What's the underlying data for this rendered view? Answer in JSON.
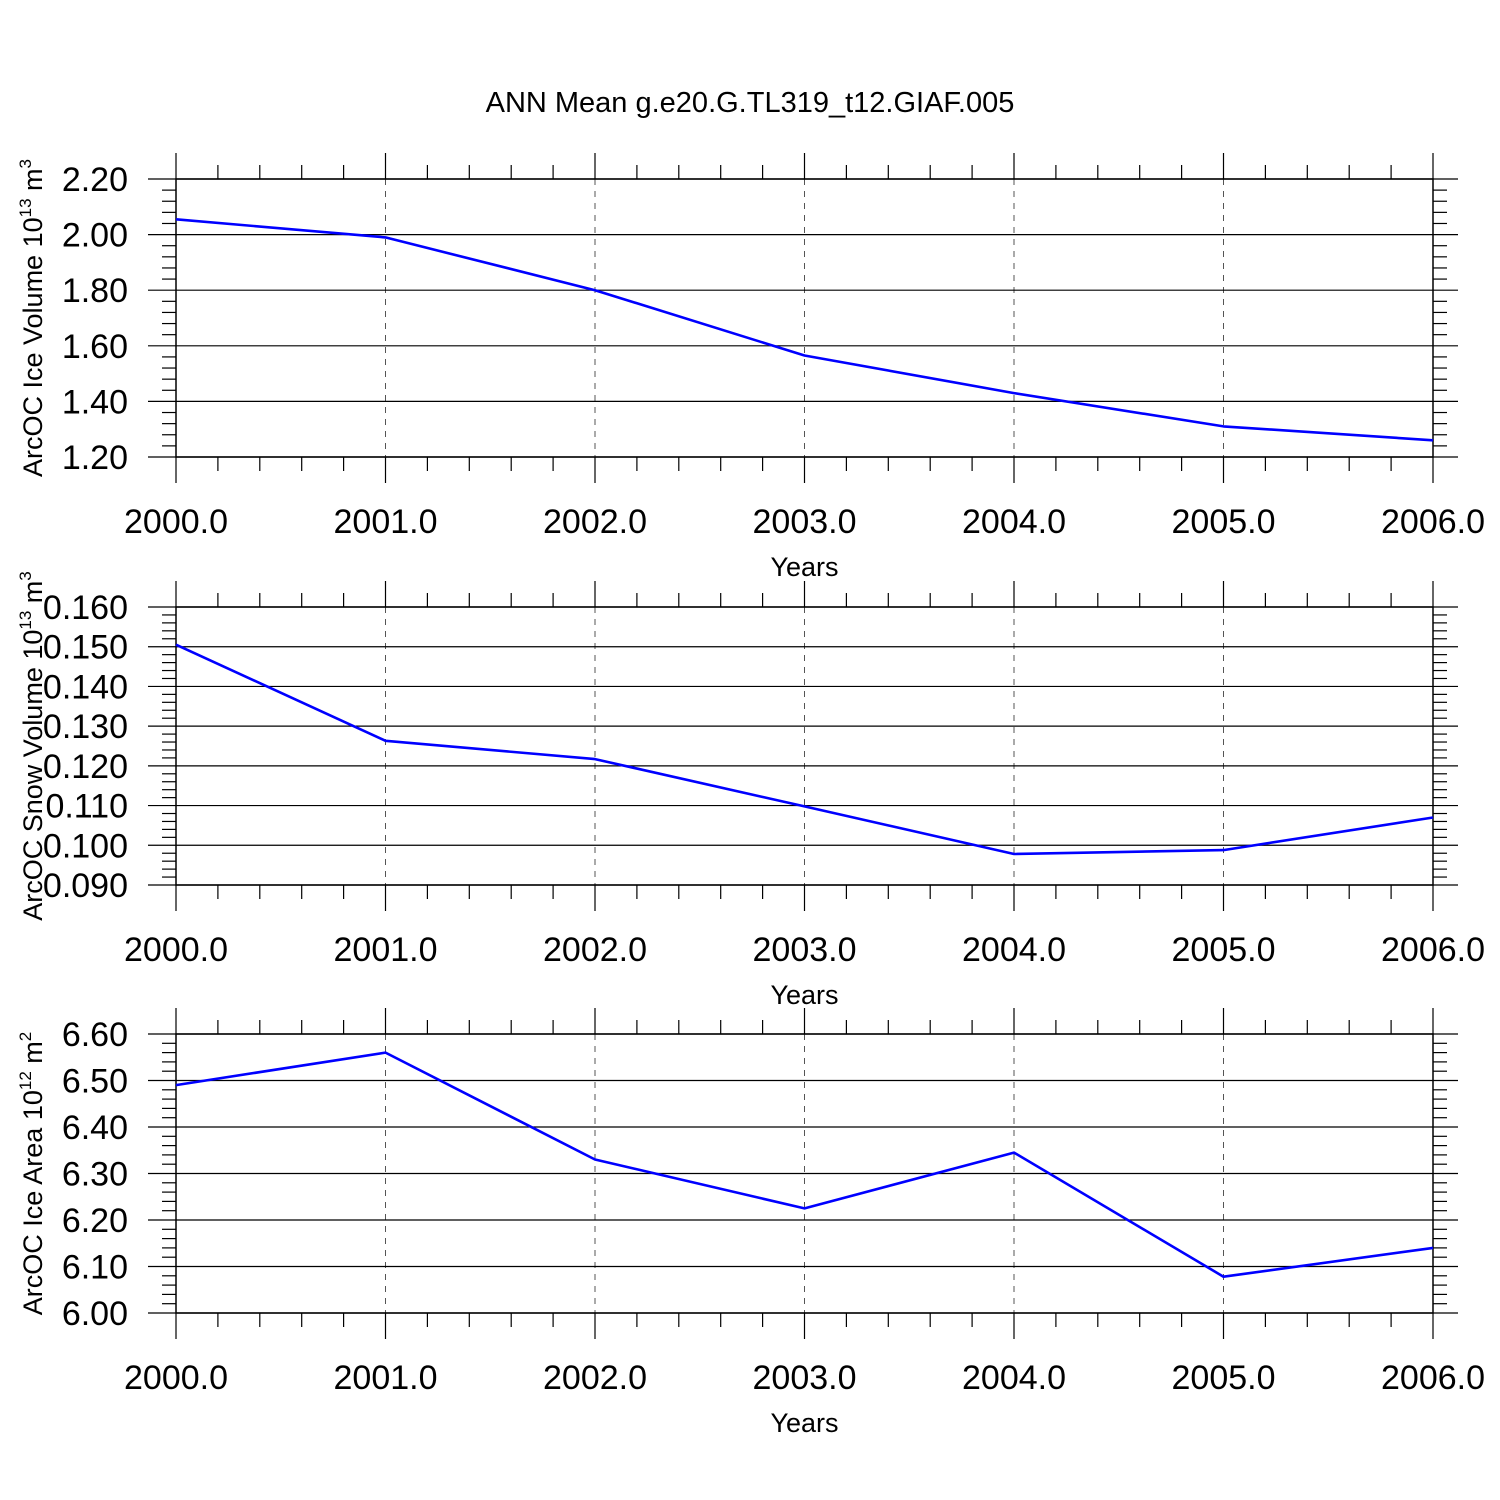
{
  "title": "ANN Mean g.e20.G.TL319_t12.GIAF.005",
  "line_color": "#0000ff",
  "chart_data": [
    {
      "type": "line",
      "xlabel": "Years",
      "ylabel": "ArcOC Ice Volume 10",
      "ylabel_exp": "13",
      "ylabel_unit": " m",
      "ylabel_unit_exp": "3",
      "x": [
        2000,
        2001,
        2002,
        2003,
        2004,
        2005,
        2006
      ],
      "y": [
        2.055,
        1.99,
        1.8,
        1.565,
        1.43,
        1.31,
        1.26
      ],
      "xlim": [
        2000,
        2006
      ],
      "ylim": [
        1.2,
        2.2
      ],
      "xticks": [
        "2000.0",
        "2001.0",
        "2002.0",
        "2003.0",
        "2004.0",
        "2005.0",
        "2006.0"
      ],
      "yticks": [
        "1.20",
        "1.40",
        "1.60",
        "1.80",
        "2.00",
        "2.20"
      ],
      "grid": "vertical dashed"
    },
    {
      "type": "line",
      "xlabel": "Years",
      "ylabel": "ArcOC Snow Volume 10",
      "ylabel_exp": "13",
      "ylabel_unit": " m",
      "ylabel_unit_exp": "3",
      "x": [
        2000,
        2001,
        2002,
        2003,
        2004,
        2005,
        2006
      ],
      "y": [
        0.1505,
        0.1263,
        0.1217,
        0.1098,
        0.0978,
        0.0988,
        0.107
      ],
      "xlim": [
        2000,
        2006
      ],
      "ylim": [
        0.09,
        0.16
      ],
      "xticks": [
        "2000.0",
        "2001.0",
        "2002.0",
        "2003.0",
        "2004.0",
        "2005.0",
        "2006.0"
      ],
      "yticks": [
        "0.090",
        "0.100",
        "0.110",
        "0.120",
        "0.130",
        "0.140",
        "0.150",
        "0.160"
      ],
      "grid": "vertical dashed"
    },
    {
      "type": "line",
      "xlabel": "Years",
      "ylabel": "ArcOC Ice Area 10",
      "ylabel_exp": "12",
      "ylabel_unit": " m",
      "ylabel_unit_exp": "2",
      "x": [
        2000,
        2001,
        2002,
        2003,
        2004,
        2005,
        2006
      ],
      "y": [
        6.49,
        6.56,
        6.33,
        6.225,
        6.345,
        6.078,
        6.14
      ],
      "xlim": [
        2000,
        2006
      ],
      "ylim": [
        6.0,
        6.6
      ],
      "xticks": [
        "2000.0",
        "2001.0",
        "2002.0",
        "2003.0",
        "2004.0",
        "2005.0",
        "2006.0"
      ],
      "yticks": [
        "6.00",
        "6.10",
        "6.20",
        "6.30",
        "6.40",
        "6.50",
        "6.60"
      ],
      "grid": "vertical dashed"
    }
  ]
}
